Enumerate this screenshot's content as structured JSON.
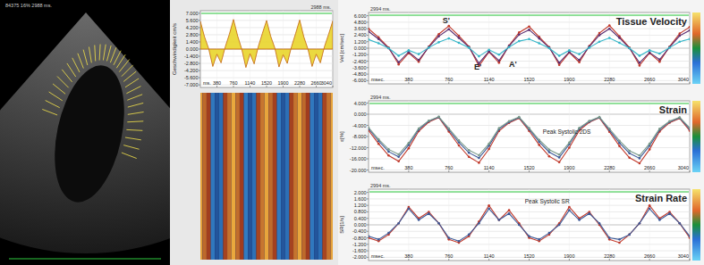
{
  "echo_image": {
    "label": "84375  16%  2988 ms."
  },
  "chart_data": [
    {
      "type": "area",
      "time_label": "2988 ms.",
      "x_label": "ms.",
      "y_label": "Geschwindigkeit cm/s",
      "x": [
        0,
        95,
        190,
        285,
        380,
        475,
        570,
        665,
        760,
        855,
        950,
        1045,
        1140,
        1235,
        1330,
        1425,
        1520,
        1615,
        1710,
        1805,
        1900,
        1995,
        2090,
        2185,
        2280,
        2375,
        2470,
        2565,
        2660,
        2755,
        2850,
        2945,
        3040
      ],
      "series": [
        {
          "color": "#e8d21e",
          "values": [
            5.4,
            2.4,
            0.1,
            -3.4,
            -1.0,
            -2.7,
            0.4,
            2.9,
            5.8,
            2.6,
            0.0,
            -3.6,
            -0.9,
            -2.9,
            0.5,
            3.1,
            5.6,
            2.5,
            0.2,
            -3.5,
            -1.1,
            -2.8,
            0.4,
            3.0,
            5.7,
            2.4,
            0.0,
            -3.4,
            -1.0,
            -2.7,
            0.5,
            2.9,
            5.5
          ]
        }
      ],
      "xlim": [
        0,
        3040
      ],
      "ylim": [
        -7.5,
        7.5
      ],
      "xticks": [
        380,
        760,
        1140,
        1520,
        1900,
        2280,
        2660,
        3040
      ],
      "yticks": [
        {
          "value": 7,
          "label": "7.000"
        },
        {
          "value": 5.6,
          "label": "5.600"
        },
        {
          "value": 4.2,
          "label": "4.200"
        },
        {
          "value": 2.8,
          "label": "2.800"
        },
        {
          "value": 1.4,
          "label": "1.400"
        },
        {
          "value": 0,
          "label": "0.000"
        },
        {
          "value": -1.4,
          "label": "-1.400"
        },
        {
          "value": -2.8,
          "label": "-2.800"
        },
        {
          "value": -4.2,
          "label": "-4.200"
        },
        {
          "value": -5.6,
          "label": "-5.600"
        },
        {
          "value": -7,
          "label": "-7.000"
        }
      ],
      "grid": true
    },
    {
      "type": "line",
      "title": "Tissue Velocity",
      "time_label": "2994 ms.",
      "x_label": "msec.",
      "y_label": "Vel.[cm/sec]",
      "marker": "circle",
      "x": [
        0,
        95,
        190,
        285,
        380,
        475,
        570,
        665,
        760,
        855,
        950,
        1045,
        1140,
        1235,
        1330,
        1425,
        1520,
        1615,
        1710,
        1805,
        1900,
        1995,
        2090,
        2185,
        2280,
        2375,
        2470,
        2565,
        2660,
        2755,
        2850,
        2945,
        3040
      ],
      "series": [
        {
          "color": "#c0392b",
          "values": [
            3.6,
            2.0,
            0.1,
            -3.0,
            -0.9,
            -2.5,
            0.3,
            2.6,
            4.1,
            2.3,
            0.3,
            -3.3,
            -0.7,
            -2.7,
            0.5,
            2.9,
            4.0,
            2.1,
            0.2,
            -3.1,
            -0.8,
            -2.6,
            0.4,
            2.8,
            4.2,
            2.2,
            0.1,
            -3.2,
            -0.9,
            -2.5,
            0.3,
            2.7,
            3.9
          ]
        },
        {
          "color": "#5b2c6f",
          "values": [
            3.1,
            1.7,
            0.0,
            -2.6,
            -0.7,
            -2.2,
            0.2,
            2.2,
            3.5,
            1.9,
            0.2,
            -2.8,
            -0.6,
            -2.3,
            0.4,
            2.5,
            3.4,
            1.8,
            0.1,
            -2.7,
            -0.7,
            -2.2,
            0.3,
            2.4,
            3.6,
            1.9,
            0.0,
            -2.7,
            -0.8,
            -2.1,
            0.2,
            2.3,
            3.3
          ]
        },
        {
          "color": "#35b6c8",
          "values": [
            1.6,
            0.9,
            0.0,
            -1.4,
            -0.4,
            -1.1,
            0.1,
            1.1,
            1.8,
            1.0,
            0.1,
            -1.5,
            -0.3,
            -1.2,
            0.2,
            1.3,
            1.7,
            0.9,
            0.0,
            -1.4,
            -0.4,
            -1.1,
            0.1,
            1.2,
            1.9,
            1.0,
            0.0,
            -1.4,
            -0.4,
            -1.0,
            0.1,
            1.2,
            1.7
          ]
        }
      ],
      "xlim": [
        0,
        3040
      ],
      "ylim": [
        -6.6,
        6.6
      ],
      "xticks": [
        380,
        760,
        1140,
        1520,
        1900,
        2280,
        2660,
        3040
      ],
      "yticks": [
        {
          "value": 6,
          "label": "6.000"
        },
        {
          "value": 4.8,
          "label": "4.800"
        },
        {
          "value": 3.6,
          "label": "3.600"
        },
        {
          "value": 2.4,
          "label": "2.400"
        },
        {
          "value": 1.2,
          "label": "1.200"
        },
        {
          "value": 0,
          "label": "0.000"
        },
        {
          "value": -1.2,
          "label": "-1.200"
        },
        {
          "value": -2.4,
          "label": "-2.400"
        },
        {
          "value": -3.6,
          "label": "-3.600"
        },
        {
          "value": -4.8,
          "label": "-4.800"
        },
        {
          "value": -6,
          "label": "-6.000"
        }
      ],
      "grid": true,
      "annotations": [
        {
          "text": "S'",
          "x": 700,
          "y": 4.7
        },
        {
          "text": "E'",
          "x": 1000,
          "y": -3.9
        },
        {
          "text": "A'",
          "x": 1330,
          "y": -3.4
        }
      ]
    },
    {
      "type": "line",
      "title": "Strain",
      "time_label": "2994 ms.",
      "x_label": "msec.",
      "y_label": "ε[%]",
      "marker": "circle",
      "x": [
        0,
        95,
        190,
        285,
        380,
        475,
        570,
        665,
        760,
        855,
        950,
        1045,
        1140,
        1235,
        1330,
        1425,
        1520,
        1615,
        1710,
        1805,
        1900,
        1995,
        2090,
        2185,
        2280,
        2375,
        2470,
        2565,
        2660,
        2755,
        2850,
        2945,
        3040
      ],
      "series": [
        {
          "color": "#c0392b",
          "values": [
            -5.8,
            -10.6,
            -14.8,
            -16.9,
            -12.2,
            -6.1,
            -2.8,
            -1.2,
            -6.2,
            -11.2,
            -15.3,
            -17.4,
            -12.5,
            -6.0,
            -3.1,
            -1.4,
            -6.0,
            -11.0,
            -15.1,
            -17.2,
            -12.0,
            -5.8,
            -2.9,
            -1.3,
            -6.3,
            -11.4,
            -15.6,
            -17.6,
            -12.6,
            -6.2,
            -3.0,
            -1.5,
            -5.9
          ]
        },
        {
          "color": "#3d5a98",
          "values": [
            -5.2,
            -9.6,
            -13.4,
            -15.3,
            -11.0,
            -5.5,
            -2.5,
            -1.0,
            -5.6,
            -10.1,
            -13.8,
            -15.7,
            -11.3,
            -5.4,
            -2.8,
            -1.2,
            -5.4,
            -9.9,
            -13.6,
            -15.5,
            -10.8,
            -5.2,
            -2.6,
            -1.1,
            -5.7,
            -10.3,
            -14.0,
            -15.8,
            -11.3,
            -5.6,
            -2.7,
            -1.3,
            -5.3
          ]
        },
        {
          "color": "#7a9a8a",
          "values": [
            -4.8,
            -9.0,
            -12.6,
            -14.4,
            -10.3,
            -5.1,
            -2.3,
            -0.9,
            -5.1,
            -9.4,
            -12.9,
            -14.7,
            -10.6,
            -5.0,
            -2.5,
            -1.0,
            -5.0,
            -9.2,
            -12.7,
            -14.5,
            -10.2,
            -4.9,
            -2.4,
            -1.0,
            -5.2,
            -9.5,
            -13.1,
            -14.8,
            -10.6,
            -5.2,
            -2.5,
            -1.1,
            -4.9
          ]
        }
      ],
      "xlim": [
        0,
        3040
      ],
      "ylim": [
        -20.8,
        4.8
      ],
      "xticks": [
        380,
        760,
        1140,
        1520,
        1900,
        2280,
        2660,
        3040
      ],
      "yticks": [
        {
          "value": 4,
          "label": "4.000"
        },
        {
          "value": 0,
          "label": "0.000"
        },
        {
          "value": -4,
          "label": "-4.000"
        },
        {
          "value": -8,
          "label": "-8.000"
        },
        {
          "value": -12,
          "label": "-12.000"
        },
        {
          "value": -16,
          "label": "-16.000"
        },
        {
          "value": -20,
          "label": "-20.000"
        }
      ],
      "grid": true,
      "annotations": [
        {
          "text": "Peak Systolic 2DS",
          "x": 1650,
          "y": -7
        }
      ]
    },
    {
      "type": "line",
      "title": "Strain Rate",
      "time_label": "2994 ms.",
      "x_label": "msec.",
      "y_label": "SR[1/s]",
      "marker": "circle",
      "x": [
        0,
        95,
        190,
        285,
        380,
        475,
        570,
        665,
        760,
        855,
        950,
        1045,
        1140,
        1235,
        1330,
        1425,
        1520,
        1615,
        1710,
        1805,
        1900,
        1995,
        2090,
        2185,
        2280,
        2375,
        2470,
        2565,
        2660,
        2755,
        2850,
        2945,
        3040
      ],
      "series": [
        {
          "color": "#c0392b",
          "values": [
            -0.8,
            -1.0,
            -0.6,
            0.1,
            1.1,
            0.4,
            0.8,
            0.1,
            -0.9,
            -1.1,
            -0.7,
            0.2,
            1.2,
            0.3,
            0.9,
            0.1,
            -0.8,
            -1.0,
            -0.6,
            0.1,
            1.1,
            0.4,
            0.8,
            0.0,
            -0.9,
            -1.1,
            -0.6,
            0.1,
            1.2,
            0.4,
            0.8,
            0.1,
            -0.8
          ]
        },
        {
          "color": "#3d5a98",
          "values": [
            -0.7,
            -0.9,
            -0.5,
            0.1,
            1.0,
            0.3,
            0.7,
            0.1,
            -0.8,
            -1.0,
            -0.6,
            0.1,
            1.0,
            0.3,
            0.7,
            0.0,
            -0.7,
            -0.9,
            -0.5,
            0.0,
            0.9,
            0.3,
            0.7,
            0.1,
            -0.8,
            -0.9,
            -0.6,
            0.1,
            1.0,
            0.3,
            0.7,
            0.1,
            -0.7
          ]
        }
      ],
      "xlim": [
        0,
        3040
      ],
      "ylim": [
        -2.2,
        2.2
      ],
      "xticks": [
        380,
        760,
        1140,
        1520,
        1900,
        2280,
        2660,
        3040
      ],
      "yticks": [
        {
          "value": 2,
          "label": "2.000"
        },
        {
          "value": 1.6,
          "label": "1.600"
        },
        {
          "value": 1.2,
          "label": "1.200"
        },
        {
          "value": 0.8,
          "label": "0.800"
        },
        {
          "value": 0.4,
          "label": "0.400"
        },
        {
          "value": 0,
          "label": "0.000"
        },
        {
          "value": -0.4,
          "label": "-0.400"
        },
        {
          "value": -0.8,
          "label": "-0.800"
        },
        {
          "value": -1.2,
          "label": "-1.200"
        },
        {
          "value": -1.6,
          "label": "-1.600"
        },
        {
          "value": -2,
          "label": "-2.000"
        }
      ],
      "grid": true,
      "annotations": [
        {
          "text": "Peak Systolic SR",
          "x": 1480,
          "y": 1.3
        }
      ]
    }
  ]
}
